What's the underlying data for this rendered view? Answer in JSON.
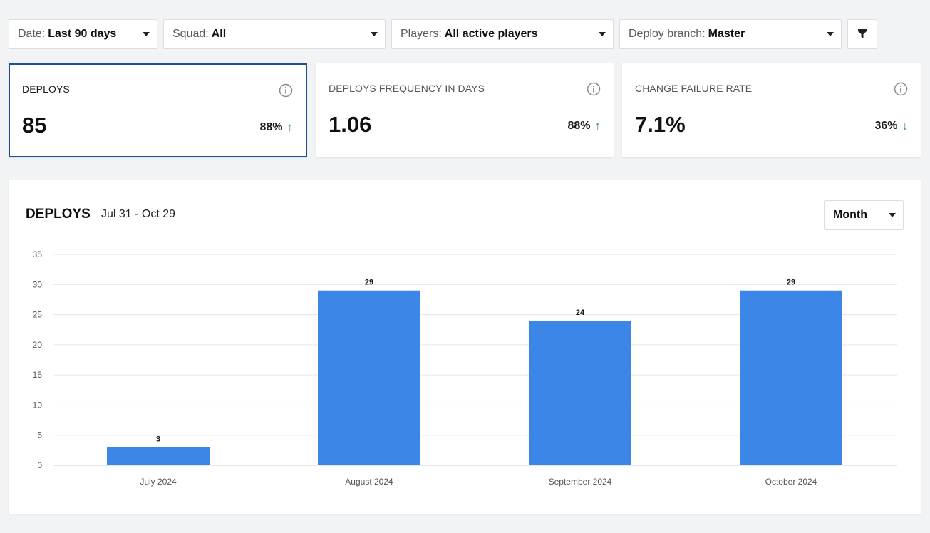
{
  "filters": {
    "date": {
      "label": "Date:",
      "value": "Last 90 days"
    },
    "squad": {
      "label": "Squad:",
      "value": "All"
    },
    "players": {
      "label": "Players:",
      "value": "All active players"
    },
    "branch": {
      "label": "Deploy branch:",
      "value": "Master"
    }
  },
  "cards": [
    {
      "title": "DEPLOYS",
      "value": "85",
      "trend": "88%",
      "trend_dir": "↑",
      "selected": true
    },
    {
      "title": "DEPLOYS FREQUENCY IN DAYS",
      "value": "1.06",
      "trend": "88%",
      "trend_dir": "↑",
      "selected": false
    },
    {
      "title": "CHANGE FAILURE RATE",
      "value": "7.1%",
      "trend": "36%",
      "trend_dir": "↓",
      "selected": false
    }
  ],
  "panel": {
    "title": "DEPLOYS",
    "range": "Jul 31 - Oct 29",
    "grouping": "Month"
  },
  "colors": {
    "bar": "#3b86e6",
    "trend_up": "#3aa34a",
    "trend_down": "#3aa34a",
    "selected_border": "#1d4f9c"
  },
  "chart_data": {
    "type": "bar",
    "title": "",
    "categories": [
      "July 2024",
      "August 2024",
      "September 2024",
      "October 2024"
    ],
    "values": [
      3,
      29,
      24,
      29
    ],
    "ylim": [
      0,
      35
    ],
    "yticks": [
      0,
      5,
      10,
      15,
      20,
      25,
      30,
      35
    ],
    "grid": true,
    "data_labels": true
  }
}
